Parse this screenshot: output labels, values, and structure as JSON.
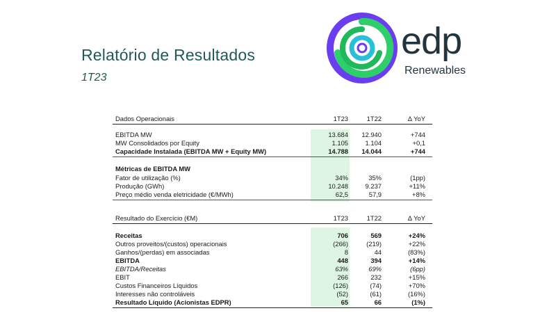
{
  "header": {
    "title": "Relatório de Resultados",
    "period": "1T23"
  },
  "logo": {
    "word": "edp",
    "sub": "Renewables",
    "colors": {
      "ring_outer": "#6b3df0",
      "ring_mid": "#2ecf6b",
      "ring_inner": "#28c0d8",
      "text": "#24343e"
    }
  },
  "colors": {
    "title": "#1f5a56",
    "highlight": "#dff5e3"
  },
  "table1": {
    "header": {
      "label": "Dados Operacionais",
      "c1": "1T23",
      "c2": "1T22",
      "c3": "Δ YoY"
    },
    "rows": [
      {
        "label": "EBITDA MW",
        "c1": "13.684",
        "c2": "12.940",
        "c3": "+744"
      },
      {
        "label": "MW Consolidados por Equity",
        "c1": "1.105",
        "c2": "1.104",
        "c3": "+0,1"
      },
      {
        "label": "Capacidade Instalada (EBITDA MW + Equity MW)",
        "c1": "14.788",
        "c2": "14.044",
        "c3": "+744"
      }
    ],
    "section_label": "Métricas de EBITDA MW",
    "rows2": [
      {
        "label": "Fator de utilização (%)",
        "c1": "34%",
        "c2": "35%",
        "c3": "(1pp)"
      },
      {
        "label": "Produção (GWh)",
        "c1": "10.248",
        "c2": "9.237",
        "c3": "+11%"
      },
      {
        "label": "Preço médio venda eletricidade (€/MWh)",
        "c1": "62,5",
        "c2": "57,9",
        "c3": "+8%"
      }
    ]
  },
  "table2": {
    "header": {
      "label": "Resultado do Exercício (€M)",
      "c1": "1T23",
      "c2": "1T22",
      "c3": "Δ YoY"
    },
    "rows": [
      {
        "label": "Receitas",
        "c1": "706",
        "c2": "569",
        "c3": "+24%"
      },
      {
        "label": "Outros proveitos/(custos) operacionais",
        "c1": "(266)",
        "c2": "(219)",
        "c3": "+22%"
      },
      {
        "label": "Ganhos/(perdas) em associadas",
        "c1": "8",
        "c2": "44",
        "c3": "(83%)"
      },
      {
        "label": "EBITDA",
        "c1": "448",
        "c2": "394",
        "c3": "+14%"
      },
      {
        "label": "EBITDA/Receitas",
        "c1": "63%",
        "c2": "69%",
        "c3": "(6pp)"
      },
      {
        "label": "EBIT",
        "c1": "266",
        "c2": "232",
        "c3": "+15%"
      },
      {
        "label": "Custos Financeiros Líquidos",
        "c1": "(126)",
        "c2": "(74)",
        "c3": "+70%"
      },
      {
        "label": "Interesses não controláveis",
        "c1": "(52)",
        "c2": "(61)",
        "c3": "(16%)"
      },
      {
        "label": "Resultado Líquido (Acionistas EDPR)",
        "c1": "65",
        "c2": "66",
        "c3": "(1%)"
      }
    ]
  }
}
